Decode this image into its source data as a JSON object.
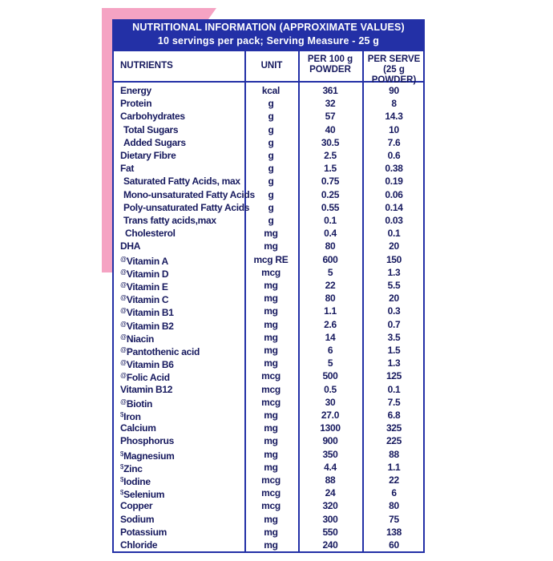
{
  "header": {
    "title": "NUTRITIONAL INFORMATION (APPROXIMATE VALUES)",
    "subtitle": "10 servings per pack; Serving Measure - 25 g"
  },
  "table": {
    "columns": [
      "NUTRIENTS",
      "UNIT",
      [
        "PER 100 g",
        "POWDER"
      ],
      [
        "PER SERVE",
        "(25 g POWDER)"
      ]
    ],
    "rows": [
      {
        "name": "Energy",
        "unit": "kcal",
        "per100": "361",
        "perServe": "90"
      },
      {
        "name": "Protein",
        "unit": "g",
        "per100": "32",
        "perServe": "8"
      },
      {
        "name": "Carbohydrates",
        "unit": "g",
        "per100": "57",
        "perServe": "14.3",
        "sub": [
          {
            "name": "Total Sugars",
            "unit": "g",
            "per100": "40",
            "perServe": "10"
          },
          {
            "name": "Added Sugars",
            "unit": "g",
            "per100": "30.5",
            "perServe": "7.6"
          }
        ]
      },
      {
        "name": "Dietary Fibre",
        "unit": "g",
        "per100": "2.5",
        "perServe": "0.6"
      },
      {
        "name": "Fat",
        "unit": "g",
        "per100": "1.5",
        "perServe": "0.38",
        "sub": [
          {
            "name": "Saturated Fatty Acids, max",
            "unit": "g",
            "per100": "0.75",
            "perServe": "0.19"
          },
          {
            "name": "Mono-unsaturated Fatty Acids",
            "unit": "g",
            "per100": "0.25",
            "perServe": "0.06"
          },
          {
            "name": "Poly-unsaturated Fatty Acids",
            "unit": "g",
            "per100": "0.55",
            "perServe": "0.14"
          },
          {
            "name": "Trans fatty acids,max",
            "unit": "g",
            "per100": "0.1",
            "perServe": "0.03"
          },
          {
            "name": "Cholesterol",
            "unit": "mg",
            "per100": "0.4",
            "perServe": "0.1"
          }
        ]
      },
      {
        "name": "DHA",
        "unit": "mg",
        "per100": "80",
        "perServe": "20"
      },
      {
        "mark": "@",
        "name": "Vitamin A",
        "unit": "mcg RE",
        "per100": "600",
        "perServe": "150"
      },
      {
        "mark": "@",
        "name": "Vitamin D",
        "unit": "mcg",
        "per100": "5",
        "perServe": "1.3"
      },
      {
        "mark": "@",
        "name": "Vitamin E",
        "unit": "mg",
        "per100": "22",
        "perServe": "5.5"
      },
      {
        "mark": "@",
        "name": "Vitamin C",
        "unit": "mg",
        "per100": "80",
        "perServe": "20"
      },
      {
        "mark": "@",
        "name": "Vitamin B1",
        "unit": "mg",
        "per100": "1.1",
        "perServe": "0.3"
      },
      {
        "mark": "@",
        "name": "Vitamin B2",
        "unit": "mg",
        "per100": "2.6",
        "perServe": "0.7"
      },
      {
        "mark": "@",
        "name": "Niacin",
        "unit": "mg",
        "per100": "14",
        "perServe": "3.5"
      },
      {
        "mark": "@",
        "name": "Pantothenic acid",
        "unit": "mg",
        "per100": "6",
        "perServe": "1.5"
      },
      {
        "mark": "@",
        "name": "Vitamin B6",
        "unit": "mg",
        "per100": "5",
        "perServe": "1.3"
      },
      {
        "mark": "@",
        "name": "Folic Acid",
        "unit": "mcg",
        "per100": "500",
        "perServe": "125"
      },
      {
        "name": "Vitamin B12",
        "unit": "mcg",
        "per100": "0.5",
        "perServe": "0.1"
      },
      {
        "mark": "@",
        "name": "Biotin",
        "unit": "mcg",
        "per100": "30",
        "perServe": "7.5"
      },
      {
        "mark": "$",
        "name": "Iron",
        "unit": "mg",
        "per100": "27.0",
        "perServe": "6.8"
      },
      {
        "name": "Calcium",
        "unit": "mg",
        "per100": "1300",
        "perServe": "325"
      },
      {
        "name": "Phosphorus",
        "unit": "mg",
        "per100": "900",
        "perServe": "225"
      },
      {
        "mark": "$",
        "name": "Magnesium",
        "unit": "mg",
        "per100": "350",
        "perServe": "88"
      },
      {
        "mark": "$",
        "name": "Zinc",
        "unit": "mg",
        "per100": "4.4",
        "perServe": "1.1"
      },
      {
        "mark": "$",
        "name": "Iodine",
        "unit": "mcg",
        "per100": "88",
        "perServe": "22"
      },
      {
        "mark": "$",
        "name": "Selenium",
        "unit": "mcg",
        "per100": "24",
        "perServe": "6"
      },
      {
        "name": "Copper",
        "unit": "mcg",
        "per100": "320",
        "perServe": "80"
      },
      {
        "name": "Sodium",
        "unit": "mg",
        "per100": "300",
        "perServe": "75"
      },
      {
        "name": "Potassium",
        "unit": "mg",
        "per100": "550",
        "perServe": "138"
      },
      {
        "name": "Chloride",
        "unit": "mg",
        "per100": "240",
        "perServe": "60"
      }
    ]
  }
}
